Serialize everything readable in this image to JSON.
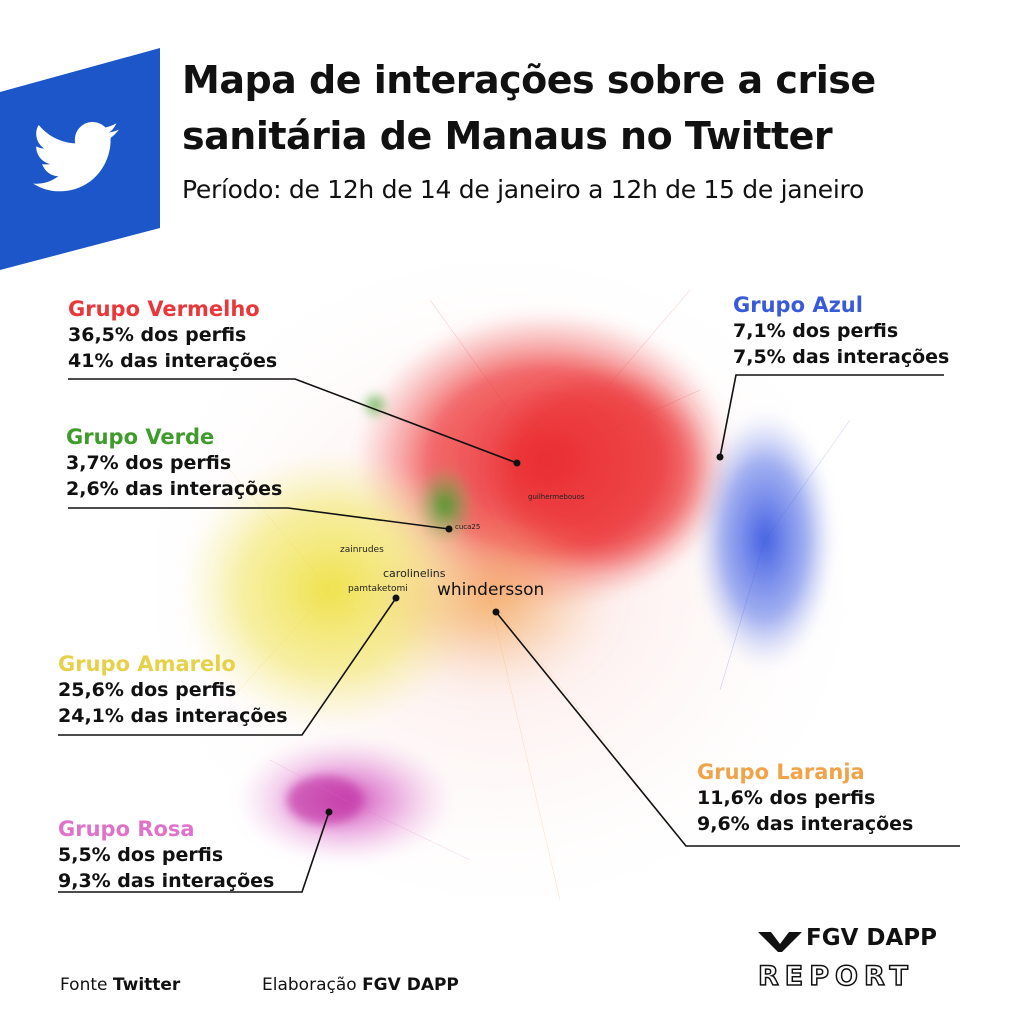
{
  "header": {
    "title": "Mapa de interações sobre a crise sanitária de Manaus no Twitter",
    "subtitle": "Período: de 12h de 14 de janeiro a 12h de 15 de janeiro"
  },
  "groups": [
    {
      "name": "Grupo Vermelho",
      "perfis": "36,5% dos perfis",
      "interacoes": "41% das interações",
      "color": "#e8383b"
    },
    {
      "name": "Grupo Azul",
      "perfis": "7,1% dos perfis",
      "interacoes": "7,5% das interações",
      "color": "#3a5bd9"
    },
    {
      "name": "Grupo Verde",
      "perfis": "3,7% dos perfis",
      "interacoes": "2,6% das interações",
      "color": "#3f9b2c"
    },
    {
      "name": "Grupo Amarelo",
      "perfis": "25,6% dos perfis",
      "interacoes": "24,1% das interações",
      "color": "#e6d14a"
    },
    {
      "name": "Grupo Laranja",
      "perfis": "11,6% dos perfis",
      "interacoes": "9,6% das interações",
      "color": "#f0a348"
    },
    {
      "name": "Grupo Rosa",
      "perfis": "5,5% dos perfis",
      "interacoes": "9,3% das interações",
      "color": "#df72c9"
    }
  ],
  "nodes": {
    "whindersson": "whindersson",
    "carolinelins": "carolinelins",
    "pamtaketomi": "pamtaketomi",
    "zainrudes": "zainrudes",
    "guilhermebouos": "guilhermebouos",
    "cuca25": "cuca25"
  },
  "footer": {
    "fonte_label": "Fonte",
    "fonte_value": "Twitter",
    "elaboracao_label": "Elaboração",
    "elaboracao_value": "FGV DAPP"
  },
  "brand": {
    "name": "FGV DAPP",
    "report": "REPORT"
  }
}
